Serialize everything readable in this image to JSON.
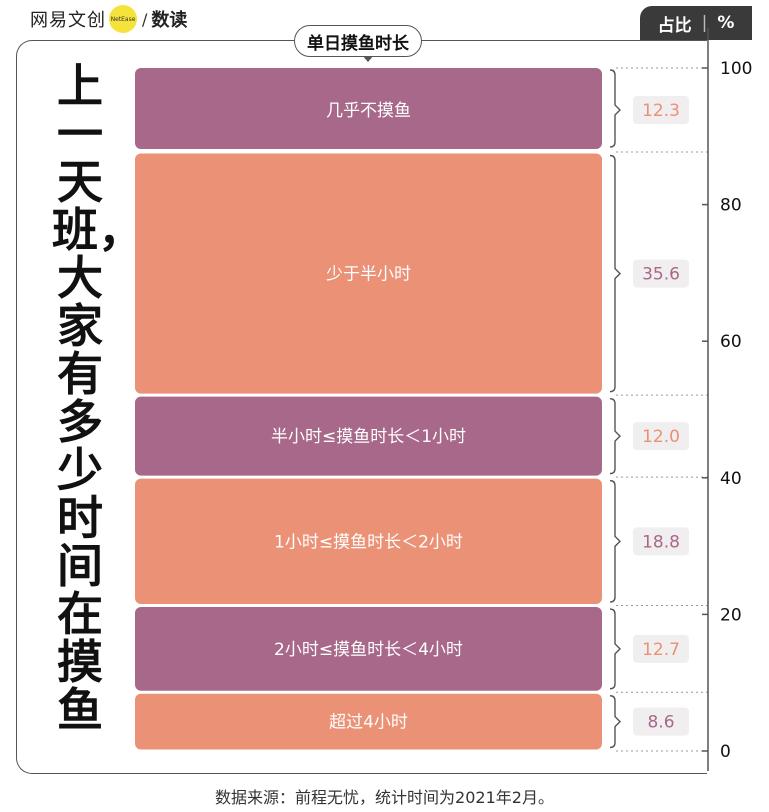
{
  "brand": {
    "name": "网易文创",
    "badge": "NetEase",
    "sub": "数读"
  },
  "unit_tab": {
    "label": "占比",
    "unit": "%"
  },
  "chart_data": {
    "type": "bar",
    "title": "上一天班，大家有多少时间在摸鱼",
    "series_label": "单日摸鱼时长",
    "stacked": true,
    "categories": [
      "几乎不摸鱼",
      "少于半小时",
      "半小时≤摸鱼时长＜1小时",
      "1小时≤摸鱼时长＜2小时",
      "2小时≤摸鱼时长＜4小时",
      "超过4小时"
    ],
    "values": [
      12.3,
      35.6,
      12.0,
      18.8,
      12.7,
      8.6
    ],
    "value_labels": [
      "12.3",
      "35.6",
      "12.0",
      "18.8",
      "12.7",
      "8.6"
    ],
    "ylim": [
      0,
      100
    ],
    "yticks": [
      0,
      20,
      40,
      60,
      80,
      100
    ],
    "ytick_labels": [
      "0",
      "20",
      "40",
      "60",
      "80",
      "100"
    ],
    "colors": {
      "purple": "#a8688a",
      "salmon": "#ea9176",
      "value_bg": "#f0eeee"
    }
  },
  "source": "数据来源：前程无忧，统计时间为2021年2月。"
}
